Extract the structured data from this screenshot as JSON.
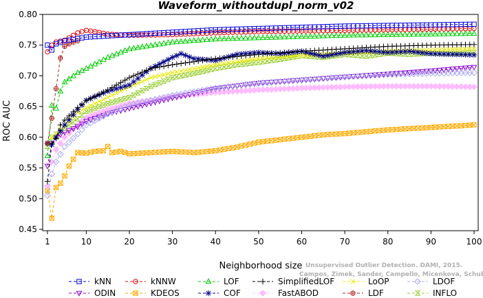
{
  "chart_data": {
    "type": "line",
    "title": "Waveform_withoutdupl_norm_v02",
    "xlabel": "Neighborhood size",
    "ylabel": "ROC AUC",
    "xlim": [
      0,
      100
    ],
    "ylim": [
      0.45,
      0.8
    ],
    "x_ticks": [
      1,
      10,
      20,
      30,
      40,
      50,
      60,
      70,
      80,
      90,
      100
    ],
    "y_ticks": [
      0.45,
      0.5,
      0.55,
      0.6,
      0.65,
      0.7,
      0.75,
      0.8
    ],
    "y_tick_labels": [
      "0.45",
      "0.50",
      "0.55",
      "0.60",
      "0.65",
      "0.70",
      "0.75",
      "0.80"
    ],
    "legend_position": "bottom",
    "watermark": [
      "Unsupervised Outlier Detection. DAMI, 2015.",
      "Campos, Zimek, Sander, Campello, Micenkova, Schubert, Assent, Houle"
    ],
    "series": [
      {
        "name": "kNN",
        "color": "#0000dd",
        "marker": "square",
        "x": [
          1,
          2,
          3,
          5,
          10,
          20,
          30,
          40,
          50,
          60,
          70,
          80,
          90,
          100
        ],
        "y": [
          0.75,
          0.742,
          0.752,
          0.757,
          0.763,
          0.767,
          0.771,
          0.775,
          0.777,
          0.779,
          0.781,
          0.782,
          0.783,
          0.784
        ]
      },
      {
        "name": "kNNW",
        "color": "#dd0000",
        "marker": "circle",
        "x": [
          1,
          2,
          3,
          5,
          8,
          10,
          12,
          15,
          20,
          30,
          40,
          50,
          60,
          70,
          80,
          90,
          100
        ],
        "y": [
          0.739,
          0.75,
          0.755,
          0.758,
          0.77,
          0.774,
          0.772,
          0.768,
          0.766,
          0.767,
          0.77,
          0.772,
          0.773,
          0.774,
          0.775,
          0.776,
          0.777
        ]
      },
      {
        "name": "LOF",
        "color": "#00cc00",
        "marker": "triangle-up",
        "x": [
          1,
          2,
          3,
          4,
          5,
          8,
          10,
          15,
          20,
          30,
          40,
          50,
          60,
          70,
          80,
          90,
          100
        ],
        "y": [
          0.57,
          0.652,
          0.647,
          0.675,
          0.69,
          0.705,
          0.712,
          0.73,
          0.744,
          0.755,
          0.76,
          0.762,
          0.764,
          0.766,
          0.767,
          0.768,
          0.769
        ]
      },
      {
        "name": "SimplifiedLOF",
        "color": "#000000",
        "marker": "plus",
        "x": [
          1,
          2,
          3,
          4,
          5,
          8,
          10,
          15,
          20,
          25,
          30,
          40,
          50,
          60,
          70,
          80,
          90,
          100
        ],
        "y": [
          0.528,
          0.59,
          0.598,
          0.62,
          0.628,
          0.648,
          0.66,
          0.677,
          0.697,
          0.712,
          0.718,
          0.728,
          0.735,
          0.74,
          0.744,
          0.748,
          0.75,
          0.751
        ]
      },
      {
        "name": "LoOP",
        "color": "#e8e800",
        "marker": "x",
        "x": [
          1,
          2,
          3,
          5,
          8,
          10,
          15,
          20,
          25,
          30,
          40,
          50,
          60,
          70,
          80,
          90,
          100
        ],
        "y": [
          0.59,
          0.6,
          0.605,
          0.62,
          0.64,
          0.648,
          0.665,
          0.682,
          0.697,
          0.705,
          0.718,
          0.728,
          0.733,
          0.737,
          0.74,
          0.742,
          0.744
        ]
      },
      {
        "name": "LDOF",
        "color": "#aaaaee",
        "marker": "diamond",
        "x": [
          1,
          2,
          3,
          5,
          8,
          10,
          15,
          20,
          30,
          40,
          50,
          60,
          70,
          80,
          90,
          100
        ],
        "y": [
          0.505,
          0.54,
          0.56,
          0.585,
          0.605,
          0.62,
          0.638,
          0.652,
          0.668,
          0.68,
          0.688,
          0.693,
          0.698,
          0.702,
          0.704,
          0.705
        ]
      },
      {
        "name": "ODIN",
        "color": "#8800cc",
        "marker": "triangle-down",
        "x": [
          1,
          2,
          3,
          5,
          8,
          10,
          15,
          20,
          30,
          40,
          50,
          60,
          70,
          80,
          90,
          100
        ],
        "y": [
          0.553,
          0.59,
          0.6,
          0.608,
          0.617,
          0.626,
          0.638,
          0.647,
          0.664,
          0.679,
          0.688,
          0.693,
          0.698,
          0.703,
          0.708,
          0.714
        ]
      },
      {
        "name": "COF",
        "color": "#000088",
        "marker": "asterisk",
        "x": [
          1,
          2,
          3,
          5,
          8,
          10,
          15,
          20,
          25,
          30,
          32,
          35,
          40,
          45,
          50,
          55,
          60,
          65,
          70,
          75,
          80,
          85,
          90,
          95,
          100
        ],
        "y": [
          0.59,
          0.588,
          0.6,
          0.62,
          0.645,
          0.66,
          0.675,
          0.685,
          0.712,
          0.73,
          0.736,
          0.728,
          0.725,
          0.735,
          0.738,
          0.736,
          0.74,
          0.732,
          0.738,
          0.741,
          0.738,
          0.74,
          0.736,
          0.735,
          0.734
        ]
      },
      {
        "name": "FastABOD",
        "color": "#ffbbff",
        "marker": "diamond-filled",
        "x": [
          1,
          2,
          3,
          5,
          8,
          10,
          15,
          20,
          30,
          40,
          50,
          60,
          70,
          80,
          90,
          100
        ],
        "y": [
          0.52,
          0.56,
          0.58,
          0.6,
          0.62,
          0.632,
          0.645,
          0.655,
          0.666,
          0.673,
          0.677,
          0.68,
          0.682,
          0.683,
          0.683,
          0.682
        ]
      },
      {
        "name": "LDF",
        "color": "#aa2222",
        "marker": "circle-plus",
        "x": [
          1,
          2,
          3,
          4,
          5,
          6,
          7,
          8
        ],
        "y": [
          0.59,
          0.631,
          0.679,
          0.729,
          0.748,
          0.752,
          0.755,
          0.757
        ]
      },
      {
        "name": "KDEOS",
        "color": "#ffaa00",
        "marker": "square-x",
        "x": [
          1,
          2,
          3,
          4,
          5,
          6,
          8,
          10,
          12,
          14,
          15,
          16,
          18,
          20,
          25,
          30,
          35,
          40,
          45,
          50,
          55,
          60,
          65,
          70,
          75,
          80,
          85,
          90,
          95,
          100
        ],
        "y": [
          0.513,
          0.468,
          0.518,
          0.525,
          0.537,
          0.553,
          0.575,
          0.574,
          0.577,
          0.578,
          0.585,
          0.575,
          0.577,
          0.573,
          0.575,
          0.577,
          0.575,
          0.578,
          0.584,
          0.592,
          0.596,
          0.6,
          0.604,
          0.606,
          0.609,
          0.612,
          0.614,
          0.616,
          0.618,
          0.62
        ]
      },
      {
        "name": "INFLO",
        "color": "#99cc33",
        "marker": "hourglass",
        "x": [
          1,
          2,
          3,
          5,
          8,
          10,
          15,
          20,
          25,
          30,
          35,
          40,
          45,
          50,
          55,
          60,
          65,
          70,
          75,
          80,
          85,
          90,
          95,
          100
        ],
        "y": [
          0.585,
          0.6,
          0.605,
          0.615,
          0.63,
          0.642,
          0.655,
          0.665,
          0.683,
          0.697,
          0.704,
          0.712,
          0.718,
          0.722,
          0.727,
          0.733,
          0.73,
          0.735,
          0.732,
          0.737,
          0.735,
          0.737,
          0.736,
          0.738
        ]
      }
    ]
  }
}
